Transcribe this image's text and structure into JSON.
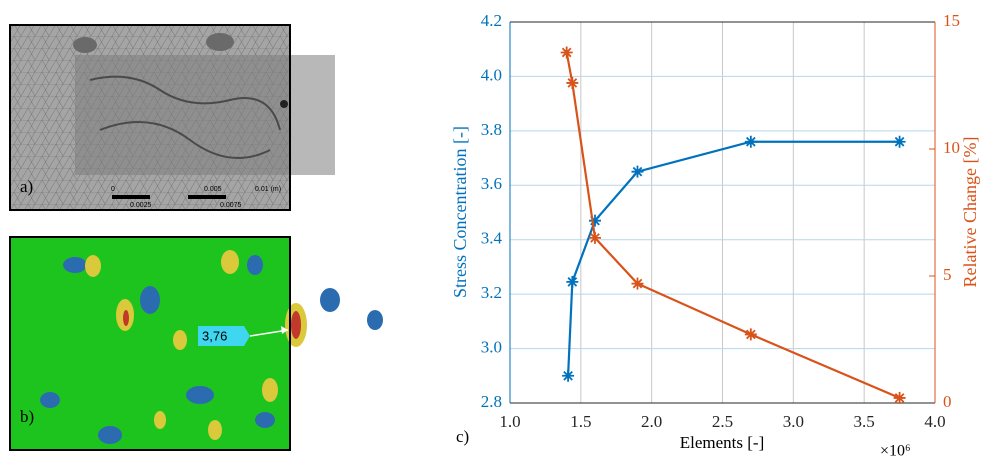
{
  "panels": {
    "a": {
      "label": "a)",
      "scale_labels": [
        "0",
        "0.005",
        "0.01 (m)",
        "0.0025",
        "0.0075"
      ]
    },
    "b": {
      "label": "b)",
      "callout": "3,76"
    }
  },
  "chart_data": {
    "type": "line",
    "panel_label": "c)",
    "xlabel": "Elements [-]",
    "x_multiplier": "×10⁶",
    "ylabel": "Stress Concentration [-]",
    "y2label": "Relative Change [%]",
    "xlim": [
      1.0,
      4.0
    ],
    "xticks": [
      {
        "value": 1.0,
        "label": "1.0"
      },
      1.5,
      {
        "value": 2.0,
        "label": "2.0"
      },
      2.5,
      {
        "value": 3.0,
        "label": "3.0"
      },
      3.5,
      {
        "value": 4.0,
        "label": "4.0"
      }
    ],
    "ylim": [
      2.8,
      4.2
    ],
    "yticks": [
      2.8,
      {
        "value": 3.0,
        "label": "3.0"
      },
      3.2,
      3.4,
      3.6,
      3.8,
      {
        "value": 4.0,
        "label": "4.0"
      },
      4.2
    ],
    "y2lim": [
      0,
      15
    ],
    "y2ticks": [
      0,
      5,
      10,
      15
    ],
    "grid": true,
    "series": [
      {
        "name": "Stress Concentration",
        "color": "#0072BD",
        "x": [
          1.41,
          1.44,
          1.6,
          1.9,
          2.7,
          3.75
        ],
        "values": [
          2.9,
          3.245,
          3.47,
          3.65,
          3.76,
          3.76
        ]
      },
      {
        "name": "Relative Change",
        "color": "#D95319",
        "axis": "y2",
        "x": [
          1.4,
          1.44,
          1.6,
          1.9,
          2.7,
          3.75
        ],
        "values": [
          13.8,
          12.6,
          6.5,
          4.7,
          2.7,
          0.2
        ]
      }
    ]
  }
}
